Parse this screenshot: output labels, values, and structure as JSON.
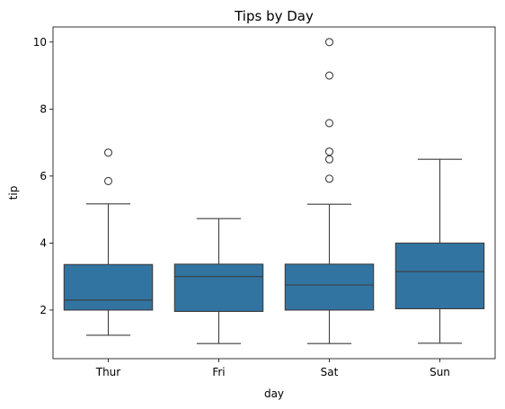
{
  "chart_data": {
    "type": "box",
    "title": "Tips by Day",
    "xlabel": "day",
    "ylabel": "tip",
    "categories": [
      "Thur",
      "Fri",
      "Sat",
      "Sun"
    ],
    "ylim": [
      0.55,
      10.45
    ],
    "yticks": [
      2,
      4,
      6,
      8,
      10
    ],
    "box_color": "#3274a1",
    "line_color": "#3d3d3d",
    "boxes": [
      {
        "category": "Thur",
        "whisker_low": 1.25,
        "q1": 2.0,
        "median": 2.3,
        "q3": 3.36,
        "whisker_high": 5.17,
        "outliers": [
          5.85,
          6.7
        ]
      },
      {
        "category": "Fri",
        "whisker_low": 1.0,
        "q1": 1.96,
        "median": 3.0,
        "q3": 3.37,
        "whisker_high": 4.73,
        "outliers": []
      },
      {
        "category": "Sat",
        "whisker_low": 1.0,
        "q1": 2.0,
        "median": 2.75,
        "q3": 3.37,
        "whisker_high": 5.16,
        "outliers": [
          5.92,
          6.5,
          6.73,
          7.58,
          9.0,
          10.0
        ]
      },
      {
        "category": "Sun",
        "whisker_low": 1.01,
        "q1": 2.04,
        "median": 3.15,
        "q3": 4.0,
        "whisker_high": 6.5,
        "outliers": []
      }
    ],
    "grid": false,
    "legend": false
  }
}
